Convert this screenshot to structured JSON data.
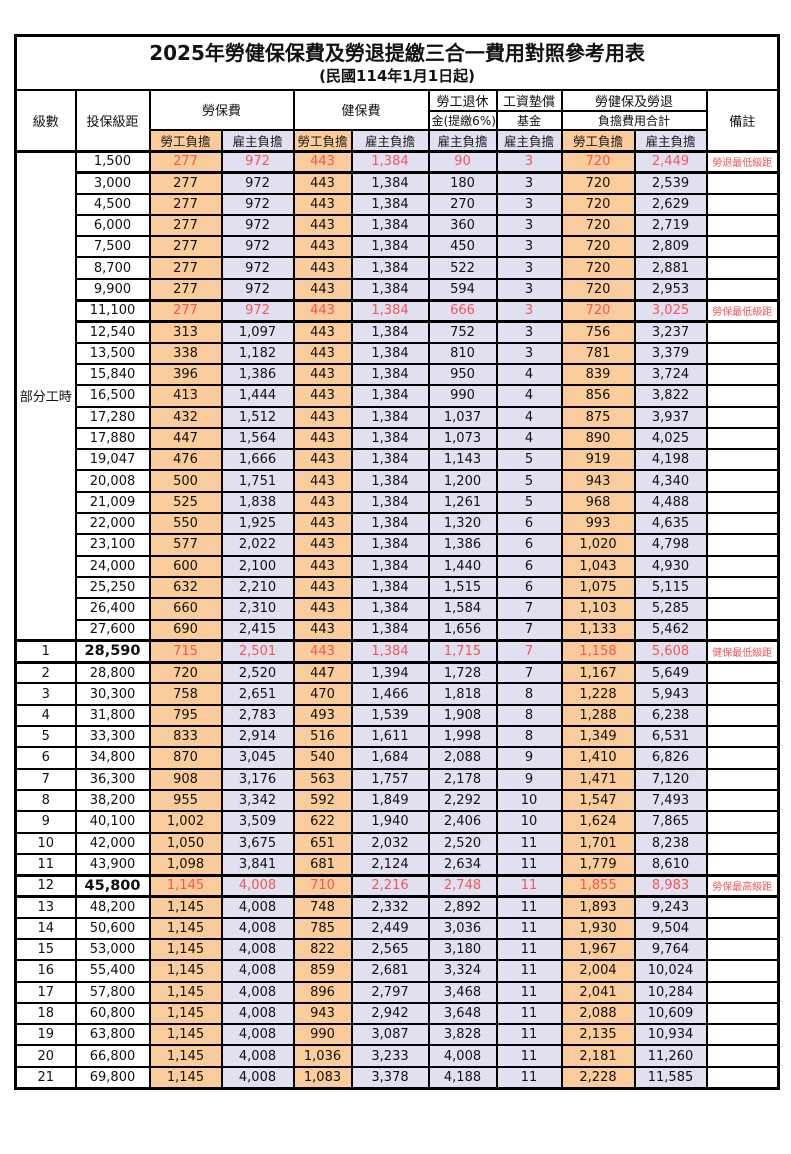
{
  "title": "2025年勞健保保費及勞退提繳三合一費用對照參考用表",
  "subtitle": "(民國114年1月1日起)",
  "colors": {
    "employee_bg": "#facb9b",
    "employer_bg": "#e0e0f1",
    "highlight_text": "#f75555",
    "border": "#000000"
  },
  "header": {
    "level": "級數",
    "bracket": "投保級距",
    "labor_insurance": "勞保費",
    "health_insurance": "健保費",
    "pension_line1": "勞工退休",
    "pension_line2": "金(提繳6%)",
    "wage_fund_line1": "工資墊償",
    "wage_fund_line2": "基金",
    "total_line1": "勞健保及勞退",
    "total_line2": "負擔費用合計",
    "remark": "備註",
    "employee": "勞工負擔",
    "employer": "雇主負擔"
  },
  "group_label": "部分工時",
  "rows": [
    {
      "lv": "",
      "br": "1,500",
      "v": [
        "277",
        "972",
        "443",
        "1,384",
        "90",
        "3",
        "720",
        "2,449"
      ],
      "rm": "勞退最低級距",
      "hl": true
    },
    {
      "lv": "",
      "br": "3,000",
      "v": [
        "277",
        "972",
        "443",
        "1,384",
        "180",
        "3",
        "720",
        "2,539"
      ],
      "rm": ""
    },
    {
      "lv": "",
      "br": "4,500",
      "v": [
        "277",
        "972",
        "443",
        "1,384",
        "270",
        "3",
        "720",
        "2,629"
      ],
      "rm": ""
    },
    {
      "lv": "",
      "br": "6,000",
      "v": [
        "277",
        "972",
        "443",
        "1,384",
        "360",
        "3",
        "720",
        "2,719"
      ],
      "rm": ""
    },
    {
      "lv": "",
      "br": "7,500",
      "v": [
        "277",
        "972",
        "443",
        "1,384",
        "450",
        "3",
        "720",
        "2,809"
      ],
      "rm": ""
    },
    {
      "lv": "",
      "br": "8,700",
      "v": [
        "277",
        "972",
        "443",
        "1,384",
        "522",
        "3",
        "720",
        "2,881"
      ],
      "rm": ""
    },
    {
      "lv": "",
      "br": "9,900",
      "v": [
        "277",
        "972",
        "443",
        "1,384",
        "594",
        "3",
        "720",
        "2,953"
      ],
      "rm": ""
    },
    {
      "lv": "",
      "br": "11,100",
      "v": [
        "277",
        "972",
        "443",
        "1,384",
        "666",
        "3",
        "720",
        "3,025"
      ],
      "rm": "勞保最低級距",
      "hl": true
    },
    {
      "lv": "",
      "br": "12,540",
      "v": [
        "313",
        "1,097",
        "443",
        "1,384",
        "752",
        "3",
        "756",
        "3,237"
      ],
      "rm": ""
    },
    {
      "lv": "",
      "br": "13,500",
      "v": [
        "338",
        "1,182",
        "443",
        "1,384",
        "810",
        "3",
        "781",
        "3,379"
      ],
      "rm": ""
    },
    {
      "lv": "",
      "br": "15,840",
      "v": [
        "396",
        "1,386",
        "443",
        "1,384",
        "950",
        "4",
        "839",
        "3,724"
      ],
      "rm": ""
    },
    {
      "lv": "",
      "br": "16,500",
      "v": [
        "413",
        "1,444",
        "443",
        "1,384",
        "990",
        "4",
        "856",
        "3,822"
      ],
      "rm": ""
    },
    {
      "lv": "",
      "br": "17,280",
      "v": [
        "432",
        "1,512",
        "443",
        "1,384",
        "1,037",
        "4",
        "875",
        "3,937"
      ],
      "rm": ""
    },
    {
      "lv": "",
      "br": "17,880",
      "v": [
        "447",
        "1,564",
        "443",
        "1,384",
        "1,073",
        "4",
        "890",
        "4,025"
      ],
      "rm": ""
    },
    {
      "lv": "",
      "br": "19,047",
      "v": [
        "476",
        "1,666",
        "443",
        "1,384",
        "1,143",
        "5",
        "919",
        "4,198"
      ],
      "rm": ""
    },
    {
      "lv": "",
      "br": "20,008",
      "v": [
        "500",
        "1,751",
        "443",
        "1,384",
        "1,200",
        "5",
        "943",
        "4,340"
      ],
      "rm": ""
    },
    {
      "lv": "",
      "br": "21,009",
      "v": [
        "525",
        "1,838",
        "443",
        "1,384",
        "1,261",
        "5",
        "968",
        "4,488"
      ],
      "rm": ""
    },
    {
      "lv": "",
      "br": "22,000",
      "v": [
        "550",
        "1,925",
        "443",
        "1,384",
        "1,320",
        "6",
        "993",
        "4,635"
      ],
      "rm": ""
    },
    {
      "lv": "",
      "br": "23,100",
      "v": [
        "577",
        "2,022",
        "443",
        "1,384",
        "1,386",
        "6",
        "1,020",
        "4,798"
      ],
      "rm": ""
    },
    {
      "lv": "",
      "br": "24,000",
      "v": [
        "600",
        "2,100",
        "443",
        "1,384",
        "1,440",
        "6",
        "1,043",
        "4,930"
      ],
      "rm": ""
    },
    {
      "lv": "",
      "br": "25,250",
      "v": [
        "632",
        "2,210",
        "443",
        "1,384",
        "1,515",
        "6",
        "1,075",
        "5,115"
      ],
      "rm": ""
    },
    {
      "lv": "",
      "br": "26,400",
      "v": [
        "660",
        "2,310",
        "443",
        "1,384",
        "1,584",
        "7",
        "1,103",
        "5,285"
      ],
      "rm": ""
    },
    {
      "lv": "",
      "br": "27,600",
      "v": [
        "690",
        "2,415",
        "443",
        "1,384",
        "1,656",
        "7",
        "1,133",
        "5,462"
      ],
      "rm": ""
    },
    {
      "lv": "1",
      "br": "28,590",
      "v": [
        "715",
        "2,501",
        "443",
        "1,384",
        "1,715",
        "7",
        "1,158",
        "5,608"
      ],
      "rm": "健保最低級距",
      "hl": true
    },
    {
      "lv": "2",
      "br": "28,800",
      "v": [
        "720",
        "2,520",
        "447",
        "1,394",
        "1,728",
        "7",
        "1,167",
        "5,649"
      ],
      "rm": ""
    },
    {
      "lv": "3",
      "br": "30,300",
      "v": [
        "758",
        "2,651",
        "470",
        "1,466",
        "1,818",
        "8",
        "1,228",
        "5,943"
      ],
      "rm": ""
    },
    {
      "lv": "4",
      "br": "31,800",
      "v": [
        "795",
        "2,783",
        "493",
        "1,539",
        "1,908",
        "8",
        "1,288",
        "6,238"
      ],
      "rm": ""
    },
    {
      "lv": "5",
      "br": "33,300",
      "v": [
        "833",
        "2,914",
        "516",
        "1,611",
        "1,998",
        "8",
        "1,349",
        "6,531"
      ],
      "rm": ""
    },
    {
      "lv": "6",
      "br": "34,800",
      "v": [
        "870",
        "3,045",
        "540",
        "1,684",
        "2,088",
        "9",
        "1,410",
        "6,826"
      ],
      "rm": ""
    },
    {
      "lv": "7",
      "br": "36,300",
      "v": [
        "908",
        "3,176",
        "563",
        "1,757",
        "2,178",
        "9",
        "1,471",
        "7,120"
      ],
      "rm": ""
    },
    {
      "lv": "8",
      "br": "38,200",
      "v": [
        "955",
        "3,342",
        "592",
        "1,849",
        "2,292",
        "10",
        "1,547",
        "7,493"
      ],
      "rm": ""
    },
    {
      "lv": "9",
      "br": "40,100",
      "v": [
        "1,002",
        "3,509",
        "622",
        "1,940",
        "2,406",
        "10",
        "1,624",
        "7,865"
      ],
      "rm": ""
    },
    {
      "lv": "10",
      "br": "42,000",
      "v": [
        "1,050",
        "3,675",
        "651",
        "2,032",
        "2,520",
        "11",
        "1,701",
        "8,238"
      ],
      "rm": ""
    },
    {
      "lv": "11",
      "br": "43,900",
      "v": [
        "1,098",
        "3,841",
        "681",
        "2,124",
        "2,634",
        "11",
        "1,779",
        "8,610"
      ],
      "rm": ""
    },
    {
      "lv": "12",
      "br": "45,800",
      "v": [
        "1,145",
        "4,008",
        "710",
        "2,216",
        "2,748",
        "11",
        "1,855",
        "8,983"
      ],
      "rm": "勞保最高級距",
      "hl": true
    },
    {
      "lv": "13",
      "br": "48,200",
      "v": [
        "1,145",
        "4,008",
        "748",
        "2,332",
        "2,892",
        "11",
        "1,893",
        "9,243"
      ],
      "rm": ""
    },
    {
      "lv": "14",
      "br": "50,600",
      "v": [
        "1,145",
        "4,008",
        "785",
        "2,449",
        "3,036",
        "11",
        "1,930",
        "9,504"
      ],
      "rm": ""
    },
    {
      "lv": "15",
      "br": "53,000",
      "v": [
        "1,145",
        "4,008",
        "822",
        "2,565",
        "3,180",
        "11",
        "1,967",
        "9,764"
      ],
      "rm": ""
    },
    {
      "lv": "16",
      "br": "55,400",
      "v": [
        "1,145",
        "4,008",
        "859",
        "2,681",
        "3,324",
        "11",
        "2,004",
        "10,024"
      ],
      "rm": ""
    },
    {
      "lv": "17",
      "br": "57,800",
      "v": [
        "1,145",
        "4,008",
        "896",
        "2,797",
        "3,468",
        "11",
        "2,041",
        "10,284"
      ],
      "rm": ""
    },
    {
      "lv": "18",
      "br": "60,800",
      "v": [
        "1,145",
        "4,008",
        "943",
        "2,942",
        "3,648",
        "11",
        "2,088",
        "10,609"
      ],
      "rm": ""
    },
    {
      "lv": "19",
      "br": "63,800",
      "v": [
        "1,145",
        "4,008",
        "990",
        "3,087",
        "3,828",
        "11",
        "2,135",
        "10,934"
      ],
      "rm": ""
    },
    {
      "lv": "20",
      "br": "66,800",
      "v": [
        "1,145",
        "4,008",
        "1,036",
        "3,233",
        "4,008",
        "11",
        "2,181",
        "11,260"
      ],
      "rm": ""
    },
    {
      "lv": "21",
      "br": "69,800",
      "v": [
        "1,145",
        "4,008",
        "1,083",
        "3,378",
        "4,188",
        "11",
        "2,228",
        "11,585"
      ],
      "rm": ""
    }
  ]
}
